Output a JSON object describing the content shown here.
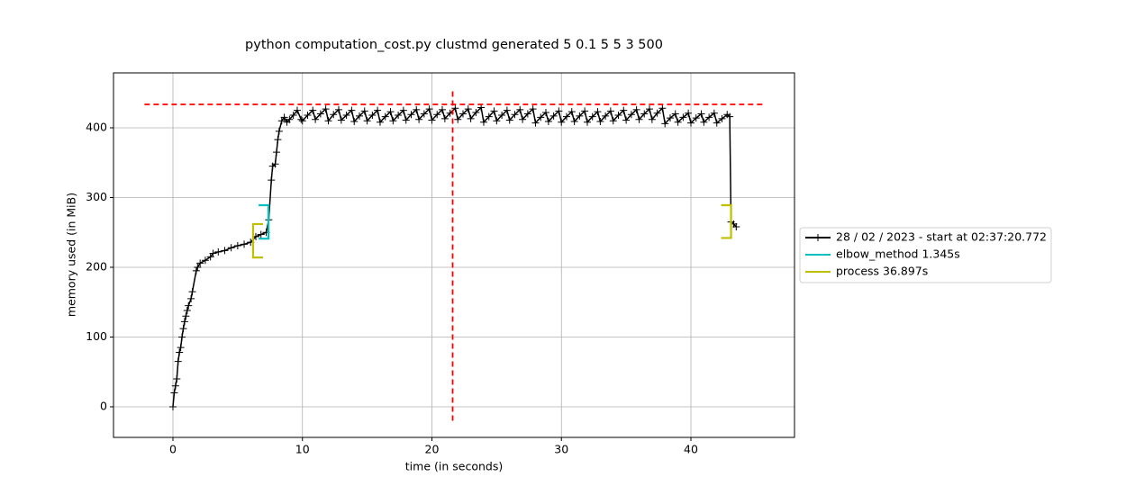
{
  "chart_data": {
    "type": "line",
    "title": "python computation_cost.py clustmd generated 5 0.1 5 5 3 500",
    "xlabel": "time (in seconds)",
    "ylabel": "memory used (in MiB)",
    "xlim": [
      -4.59,
      48.0
    ],
    "ylim": [
      -43.9,
      478.7
    ],
    "xticks": [
      0,
      10,
      20,
      30,
      40
    ],
    "yticks": [
      0,
      100,
      200,
      300,
      400
    ],
    "grid": true,
    "legend": "right",
    "x": [
      0,
      0.1,
      0.2,
      0.3,
      0.4,
      0.5,
      0.6,
      0.7,
      0.8,
      0.9,
      1.0,
      1.1,
      1.2,
      1.4,
      1.5,
      1.8,
      1.9,
      2.1,
      2.5,
      2.9,
      3.1,
      3.5,
      4.0,
      4.5,
      5.0,
      5.5,
      6.0,
      6.4,
      6.8,
      7.2,
      7.4,
      7.6,
      7.7,
      7.9,
      8.0,
      8.1,
      8.2,
      8.4,
      8.6,
      8.8,
      9.0,
      9.3,
      9.6,
      9.9,
      10,
      10.4,
      10.8,
      11,
      11.4,
      11.8,
      12,
      12.4,
      12.8,
      13,
      13.4,
      13.8,
      14,
      14.4,
      14.8,
      15,
      15.4,
      15.8,
      16,
      16.4,
      16.8,
      17,
      17.4,
      17.8,
      18,
      18.4,
      18.8,
      19,
      19.4,
      19.8,
      20,
      20.4,
      20.8,
      21,
      21.4,
      21.8,
      22,
      22.4,
      22.8,
      23,
      23.4,
      23.8,
      24,
      24.4,
      24.8,
      25,
      25.4,
      25.8,
      26,
      26.4,
      26.8,
      27,
      27.4,
      27.8,
      28,
      28.4,
      28.8,
      29,
      29.4,
      29.8,
      30,
      30.4,
      30.8,
      31,
      31.4,
      31.8,
      32,
      32.4,
      32.8,
      33,
      33.4,
      33.8,
      34,
      34.4,
      34.8,
      35,
      35.4,
      35.8,
      36,
      36.4,
      36.8,
      37,
      37.4,
      37.8,
      38,
      38.4,
      38.8,
      39,
      39.4,
      39.8,
      40,
      40.4,
      40.8,
      41,
      41.4,
      41.8,
      42,
      42.4,
      42.8,
      43.0,
      43.1,
      43.3,
      43.5
    ],
    "series": [
      {
        "name": "28 / 02 / 2023 - start at 02:37:20.772",
        "color": "#000000",
        "values": [
          0,
          20,
          30,
          40,
          65,
          78,
          85,
          100,
          112,
          122,
          130,
          138,
          145,
          155,
          165,
          195,
          200,
          206,
          210,
          215,
          220,
          222,
          224,
          228,
          231,
          233,
          236,
          244,
          247,
          250,
          268,
          325,
          345,
          348,
          365,
          383,
          395,
          410,
          415,
          408,
          412,
          418,
          425,
          412,
          410,
          418,
          425,
          412,
          420,
          427,
          410,
          419,
          426,
          411,
          418,
          425,
          409,
          417,
          424,
          410,
          418,
          425,
          408,
          416,
          423,
          410,
          418,
          425,
          411,
          419,
          426,
          412,
          420,
          427,
          411,
          419,
          426,
          413,
          421,
          428,
          412,
          420,
          427,
          413,
          422,
          429,
          408,
          416,
          424,
          410,
          418,
          425,
          411,
          419,
          426,
          412,
          420,
          427,
          407,
          415,
          422,
          409,
          417,
          424,
          408,
          416,
          423,
          409,
          417,
          424,
          408,
          416,
          423,
          409,
          417,
          424,
          410,
          418,
          425,
          411,
          419,
          426,
          412,
          420,
          427,
          412,
          421,
          428,
          406,
          414,
          420,
          408,
          415,
          421,
          407,
          414,
          420,
          408,
          415,
          421,
          407,
          413,
          419,
          416,
          265,
          262,
          258
        ]
      },
      {
        "name": "elbow_method 1.345s",
        "color": "#00bfbf",
        "brackets": [
          {
            "x": 7.38,
            "ymin": 241,
            "ymax": 289,
            "side": "end"
          }
        ]
      },
      {
        "name": "process 36.897s",
        "color": "#bfbf00",
        "brackets": [
          {
            "x": 6.19,
            "ymin": 214,
            "ymax": 262,
            "side": "start"
          },
          {
            "x": 43.1,
            "ymin": 242,
            "ymax": 289,
            "side": "end"
          }
        ]
      }
    ],
    "hline": {
      "y": 433.5,
      "xmin": -2.2,
      "xmax": 45.7,
      "color": "#ff0000"
    },
    "vline": {
      "x": 21.6,
      "ymin": -20,
      "ymax": 457,
      "color": "#ff0000"
    }
  }
}
